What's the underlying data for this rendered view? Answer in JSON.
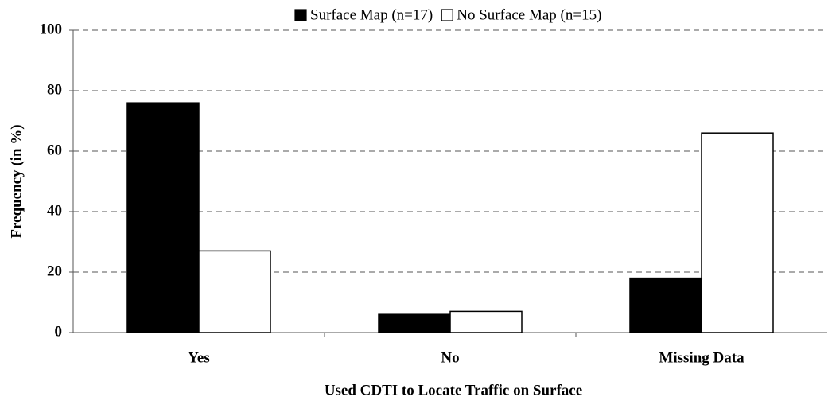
{
  "chart_data": {
    "type": "bar",
    "categories": [
      "Yes",
      "No",
      "Missing Data"
    ],
    "series": [
      {
        "name": "Surface Map (n=17)",
        "color": "#000000",
        "values": [
          76,
          6,
          18
        ]
      },
      {
        "name": "No Surface Map (n=15)",
        "color": "#ffffff",
        "values": [
          27,
          7,
          66
        ]
      }
    ],
    "xlabel": "Used CDTI to Locate Traffic on Surface",
    "ylabel": "Frequency (in %)",
    "ylim": [
      0,
      100
    ],
    "yticks": [
      0,
      20,
      40,
      60,
      80,
      100
    ],
    "grid": true,
    "legend": "top"
  }
}
